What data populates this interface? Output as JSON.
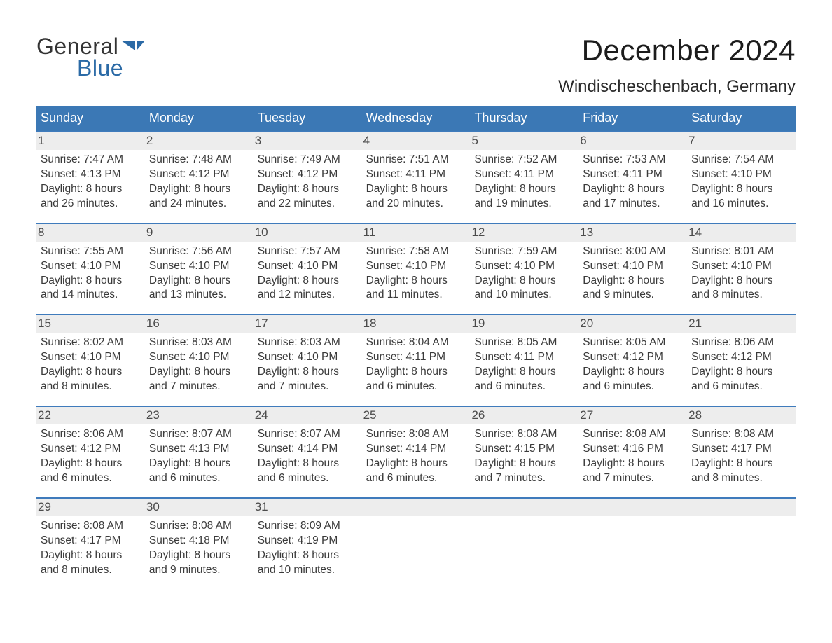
{
  "logo": {
    "general": "General",
    "blue": "Blue",
    "flag_color": "#2b6aa6"
  },
  "title": "December 2024",
  "location": "Windischeschenbach, Germany",
  "daysOfWeek": [
    "Sunday",
    "Monday",
    "Tuesday",
    "Wednesday",
    "Thursday",
    "Friday",
    "Saturday"
  ],
  "colors": {
    "header_blue": "#3b78b5",
    "row_top_line": "#3f7bbc",
    "day_bg": "#ededed",
    "text": "#222222",
    "page_bg": "#ffffff"
  },
  "weeks": [
    [
      {
        "n": "1",
        "sunrise": "Sunrise: 7:47 AM",
        "sunset": "Sunset: 4:13 PM",
        "d1": "Daylight: 8 hours",
        "d2": "and 26 minutes."
      },
      {
        "n": "2",
        "sunrise": "Sunrise: 7:48 AM",
        "sunset": "Sunset: 4:12 PM",
        "d1": "Daylight: 8 hours",
        "d2": "and 24 minutes."
      },
      {
        "n": "3",
        "sunrise": "Sunrise: 7:49 AM",
        "sunset": "Sunset: 4:12 PM",
        "d1": "Daylight: 8 hours",
        "d2": "and 22 minutes."
      },
      {
        "n": "4",
        "sunrise": "Sunrise: 7:51 AM",
        "sunset": "Sunset: 4:11 PM",
        "d1": "Daylight: 8 hours",
        "d2": "and 20 minutes."
      },
      {
        "n": "5",
        "sunrise": "Sunrise: 7:52 AM",
        "sunset": "Sunset: 4:11 PM",
        "d1": "Daylight: 8 hours",
        "d2": "and 19 minutes."
      },
      {
        "n": "6",
        "sunrise": "Sunrise: 7:53 AM",
        "sunset": "Sunset: 4:11 PM",
        "d1": "Daylight: 8 hours",
        "d2": "and 17 minutes."
      },
      {
        "n": "7",
        "sunrise": "Sunrise: 7:54 AM",
        "sunset": "Sunset: 4:10 PM",
        "d1": "Daylight: 8 hours",
        "d2": "and 16 minutes."
      }
    ],
    [
      {
        "n": "8",
        "sunrise": "Sunrise: 7:55 AM",
        "sunset": "Sunset: 4:10 PM",
        "d1": "Daylight: 8 hours",
        "d2": "and 14 minutes."
      },
      {
        "n": "9",
        "sunrise": "Sunrise: 7:56 AM",
        "sunset": "Sunset: 4:10 PM",
        "d1": "Daylight: 8 hours",
        "d2": "and 13 minutes."
      },
      {
        "n": "10",
        "sunrise": "Sunrise: 7:57 AM",
        "sunset": "Sunset: 4:10 PM",
        "d1": "Daylight: 8 hours",
        "d2": "and 12 minutes."
      },
      {
        "n": "11",
        "sunrise": "Sunrise: 7:58 AM",
        "sunset": "Sunset: 4:10 PM",
        "d1": "Daylight: 8 hours",
        "d2": "and 11 minutes."
      },
      {
        "n": "12",
        "sunrise": "Sunrise: 7:59 AM",
        "sunset": "Sunset: 4:10 PM",
        "d1": "Daylight: 8 hours",
        "d2": "and 10 minutes."
      },
      {
        "n": "13",
        "sunrise": "Sunrise: 8:00 AM",
        "sunset": "Sunset: 4:10 PM",
        "d1": "Daylight: 8 hours",
        "d2": "and 9 minutes."
      },
      {
        "n": "14",
        "sunrise": "Sunrise: 8:01 AM",
        "sunset": "Sunset: 4:10 PM",
        "d1": "Daylight: 8 hours",
        "d2": "and 8 minutes."
      }
    ],
    [
      {
        "n": "15",
        "sunrise": "Sunrise: 8:02 AM",
        "sunset": "Sunset: 4:10 PM",
        "d1": "Daylight: 8 hours",
        "d2": "and 8 minutes."
      },
      {
        "n": "16",
        "sunrise": "Sunrise: 8:03 AM",
        "sunset": "Sunset: 4:10 PM",
        "d1": "Daylight: 8 hours",
        "d2": "and 7 minutes."
      },
      {
        "n": "17",
        "sunrise": "Sunrise: 8:03 AM",
        "sunset": "Sunset: 4:10 PM",
        "d1": "Daylight: 8 hours",
        "d2": "and 7 minutes."
      },
      {
        "n": "18",
        "sunrise": "Sunrise: 8:04 AM",
        "sunset": "Sunset: 4:11 PM",
        "d1": "Daylight: 8 hours",
        "d2": "and 6 minutes."
      },
      {
        "n": "19",
        "sunrise": "Sunrise: 8:05 AM",
        "sunset": "Sunset: 4:11 PM",
        "d1": "Daylight: 8 hours",
        "d2": "and 6 minutes."
      },
      {
        "n": "20",
        "sunrise": "Sunrise: 8:05 AM",
        "sunset": "Sunset: 4:12 PM",
        "d1": "Daylight: 8 hours",
        "d2": "and 6 minutes."
      },
      {
        "n": "21",
        "sunrise": "Sunrise: 8:06 AM",
        "sunset": "Sunset: 4:12 PM",
        "d1": "Daylight: 8 hours",
        "d2": "and 6 minutes."
      }
    ],
    [
      {
        "n": "22",
        "sunrise": "Sunrise: 8:06 AM",
        "sunset": "Sunset: 4:12 PM",
        "d1": "Daylight: 8 hours",
        "d2": "and 6 minutes."
      },
      {
        "n": "23",
        "sunrise": "Sunrise: 8:07 AM",
        "sunset": "Sunset: 4:13 PM",
        "d1": "Daylight: 8 hours",
        "d2": "and 6 minutes."
      },
      {
        "n": "24",
        "sunrise": "Sunrise: 8:07 AM",
        "sunset": "Sunset: 4:14 PM",
        "d1": "Daylight: 8 hours",
        "d2": "and 6 minutes."
      },
      {
        "n": "25",
        "sunrise": "Sunrise: 8:08 AM",
        "sunset": "Sunset: 4:14 PM",
        "d1": "Daylight: 8 hours",
        "d2": "and 6 minutes."
      },
      {
        "n": "26",
        "sunrise": "Sunrise: 8:08 AM",
        "sunset": "Sunset: 4:15 PM",
        "d1": "Daylight: 8 hours",
        "d2": "and 7 minutes."
      },
      {
        "n": "27",
        "sunrise": "Sunrise: 8:08 AM",
        "sunset": "Sunset: 4:16 PM",
        "d1": "Daylight: 8 hours",
        "d2": "and 7 minutes."
      },
      {
        "n": "28",
        "sunrise": "Sunrise: 8:08 AM",
        "sunset": "Sunset: 4:17 PM",
        "d1": "Daylight: 8 hours",
        "d2": "and 8 minutes."
      }
    ],
    [
      {
        "n": "29",
        "sunrise": "Sunrise: 8:08 AM",
        "sunset": "Sunset: 4:17 PM",
        "d1": "Daylight: 8 hours",
        "d2": "and 8 minutes."
      },
      {
        "n": "30",
        "sunrise": "Sunrise: 8:08 AM",
        "sunset": "Sunset: 4:18 PM",
        "d1": "Daylight: 8 hours",
        "d2": "and 9 minutes."
      },
      {
        "n": "31",
        "sunrise": "Sunrise: 8:09 AM",
        "sunset": "Sunset: 4:19 PM",
        "d1": "Daylight: 8 hours",
        "d2": "and 10 minutes."
      },
      {
        "n": "",
        "empty": true
      },
      {
        "n": "",
        "empty": true
      },
      {
        "n": "",
        "empty": true
      },
      {
        "n": "",
        "empty": true
      }
    ]
  ]
}
